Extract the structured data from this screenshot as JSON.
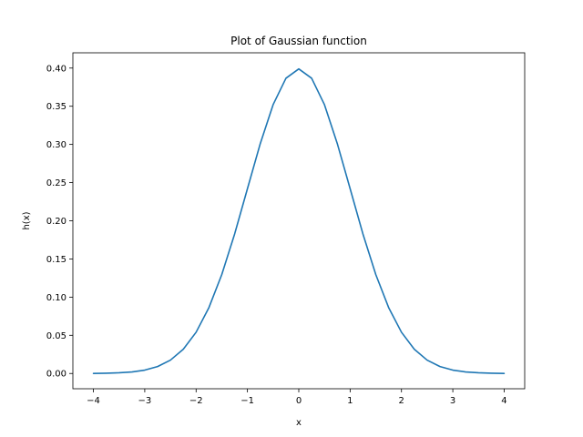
{
  "chart_data": {
    "type": "line",
    "title": "Plot of Gaussian function",
    "xlabel": "x",
    "ylabel": "h(x)",
    "xlim": [
      -4.4,
      4.4
    ],
    "ylim": [
      -0.02,
      0.42
    ],
    "xticks": [
      -4,
      -3,
      -2,
      -1,
      0,
      1,
      2,
      3,
      4
    ],
    "xtick_labels": [
      "−4",
      "−3",
      "−2",
      "−1",
      "0",
      "1",
      "2",
      "3",
      "4"
    ],
    "yticks": [
      0.0,
      0.05,
      0.1,
      0.15,
      0.2,
      0.25,
      0.3,
      0.35,
      0.4
    ],
    "ytick_labels": [
      "0.00",
      "0.05",
      "0.10",
      "0.15",
      "0.20",
      "0.25",
      "0.30",
      "0.35",
      "0.40"
    ],
    "grid": false,
    "series": [
      {
        "color": "#1f77b4",
        "x": [
          -4.0,
          -3.75,
          -3.5,
          -3.25,
          -3.0,
          -2.75,
          -2.5,
          -2.25,
          -2.0,
          -1.75,
          -1.5,
          -1.25,
          -1.0,
          -0.75,
          -0.5,
          -0.25,
          0.0,
          0.25,
          0.5,
          0.75,
          1.0,
          1.25,
          1.5,
          1.75,
          2.0,
          2.25,
          2.5,
          2.75,
          3.0,
          3.25,
          3.5,
          3.75,
          4.0
        ],
        "y": [
          0.0001,
          0.0004,
          0.0009,
          0.002,
          0.0044,
          0.0091,
          0.0175,
          0.0317,
          0.054,
          0.0863,
          0.1295,
          0.1826,
          0.242,
          0.3011,
          0.3521,
          0.3867,
          0.3989,
          0.3867,
          0.3521,
          0.3011,
          0.242,
          0.1826,
          0.1295,
          0.0863,
          0.054,
          0.0317,
          0.0175,
          0.0091,
          0.0044,
          0.002,
          0.0009,
          0.0004,
          0.0001
        ]
      }
    ]
  }
}
